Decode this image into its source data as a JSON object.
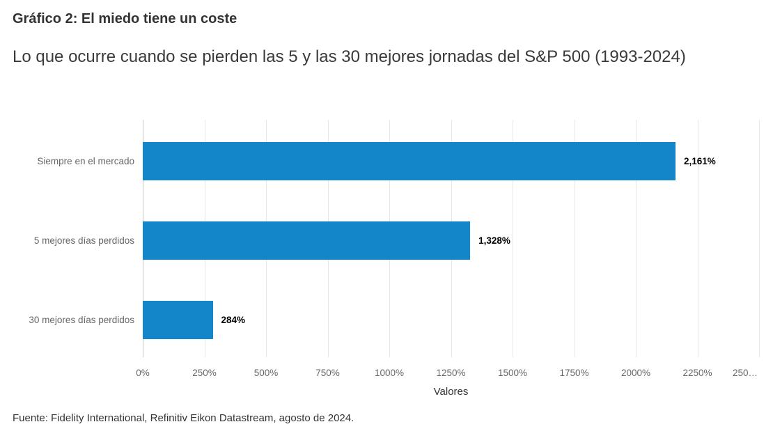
{
  "header": {
    "title": "Gráfico 2: El miedo tiene un coste",
    "subtitle": "Lo que ocurre cuando se pierden las 5 y las 30 mejores jornadas del S&P 500 (1993-2024)"
  },
  "chart_data": {
    "type": "bar",
    "orientation": "horizontal",
    "title": "Gráfico 2: El miedo tiene un coste",
    "subtitle": "Lo que ocurre cuando se pierden las 5 y las 30 mejores jornadas del S&P 500 (1993-2024)",
    "categories": [
      "Siempre en el mercado",
      "5 mejores días perdidos",
      "30 mejores días perdidos"
    ],
    "values": [
      2161,
      1328,
      284
    ],
    "value_labels": [
      "2,161%",
      "1,328%",
      "284%"
    ],
    "xlabel": "Valores",
    "ylabel": "",
    "xlim": [
      0,
      2500
    ],
    "x_ticks": [
      0,
      250,
      500,
      750,
      1000,
      1250,
      1500,
      1750,
      2000,
      2250,
      2500
    ],
    "x_tick_labels": [
      "0%",
      "250%",
      "500%",
      "750%",
      "1000%",
      "1250%",
      "1500%",
      "1750%",
      "2000%",
      "2250%",
      "250…"
    ],
    "grid": true,
    "legend": "none",
    "bar_color": "#1286c8"
  },
  "colors": {
    "bar": "#1286c8",
    "gridline": "#e7e7e7",
    "axis_line": "#c9c9c9",
    "tick_label": "#666666",
    "text": "#333333"
  },
  "footer": {
    "source": "Fuente: Fidelity International, Refinitiv Eikon Datastream, agosto de 2024."
  }
}
